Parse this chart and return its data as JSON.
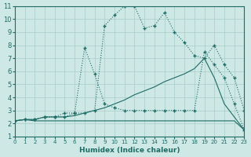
{
  "xlabel": "Humidex (Indice chaleur)",
  "xlim": [
    0,
    23
  ],
  "ylim": [
    1,
    11
  ],
  "xticks": [
    0,
    1,
    2,
    3,
    4,
    5,
    6,
    7,
    8,
    9,
    10,
    11,
    12,
    13,
    14,
    15,
    16,
    17,
    18,
    19,
    20,
    21,
    22,
    23
  ],
  "yticks": [
    1,
    2,
    3,
    4,
    5,
    6,
    7,
    8,
    9,
    10,
    11
  ],
  "background_color": "#cde8e5",
  "grid_color": "#aaccca",
  "line_color": "#1e6b65",
  "line1": {
    "x": [
      0,
      1,
      2,
      3,
      4,
      5,
      6,
      7,
      8,
      9,
      10,
      11,
      12,
      13,
      14,
      15,
      16,
      17,
      18,
      19,
      20,
      21,
      22,
      23
    ],
    "y": [
      2.2,
      2.3,
      2.2,
      2.2,
      2.2,
      2.2,
      2.2,
      2.2,
      2.2,
      2.2,
      2.2,
      2.2,
      2.2,
      2.2,
      2.2,
      2.2,
      2.2,
      2.2,
      2.2,
      2.2,
      2.2,
      2.2,
      2.2,
      1.5
    ]
  },
  "line2": {
    "x": [
      0,
      1,
      2,
      3,
      4,
      5,
      6,
      7,
      8,
      9,
      10,
      11,
      12,
      13,
      14,
      15,
      16,
      17,
      18,
      19,
      20,
      21,
      22,
      23
    ],
    "y": [
      2.2,
      2.3,
      2.3,
      2.5,
      2.5,
      2.5,
      2.6,
      2.8,
      3.0,
      3.2,
      3.5,
      3.8,
      4.2,
      4.5,
      4.8,
      5.2,
      5.5,
      5.8,
      6.2,
      7.0,
      5.5,
      3.5,
      2.5,
      1.5
    ]
  },
  "line3": {
    "x": [
      0,
      1,
      2,
      3,
      4,
      5,
      6,
      7,
      8,
      9,
      10,
      11,
      12,
      13,
      14,
      15,
      16,
      17,
      18,
      19,
      20,
      21,
      22,
      23
    ],
    "y": [
      2.2,
      2.3,
      2.3,
      2.5,
      2.5,
      2.8,
      2.8,
      7.8,
      5.8,
      3.5,
      3.2,
      3.0,
      3.0,
      3.0,
      3.0,
      3.0,
      3.0,
      3.0,
      3.0,
      7.5,
      6.5,
      5.5,
      3.5,
      1.5
    ]
  },
  "line4": {
    "x": [
      0,
      1,
      2,
      3,
      4,
      5,
      6,
      7,
      8,
      9,
      10,
      11,
      12,
      13,
      14,
      15,
      16,
      17,
      18,
      19,
      20,
      21,
      22,
      23
    ],
    "y": [
      2.2,
      2.3,
      2.3,
      2.5,
      2.5,
      2.5,
      2.8,
      2.8,
      3.0,
      9.5,
      10.3,
      11.0,
      11.0,
      9.3,
      9.5,
      10.5,
      9.0,
      8.2,
      7.2,
      7.0,
      8.0,
      6.5,
      5.5,
      3.0
    ]
  }
}
